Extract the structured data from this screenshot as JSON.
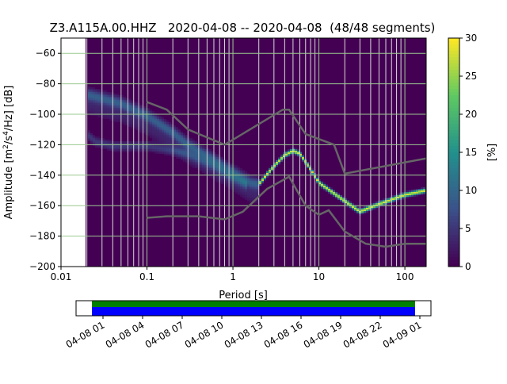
{
  "chart_data": {
    "type": "heatmap",
    "title": "Z3.A115A.00.HHZ   2020-04-08 -- 2020-04-08  (48/48 segments)",
    "xlabel": "Period [s]",
    "ylabel": "Amplitude [m²/s⁴/Hz] [dB]",
    "xscale": "log",
    "xlim": [
      0.01,
      177
    ],
    "ylim": [
      -200,
      -50
    ],
    "xticks": [
      {
        "v": 0.01,
        "label": "0.01"
      },
      {
        "v": 0.1,
        "label": "0.1"
      },
      {
        "v": 1,
        "label": "1"
      },
      {
        "v": 10,
        "label": "10"
      },
      {
        "v": 100,
        "label": "100"
      }
    ],
    "yticks": [
      {
        "v": -60,
        "label": "−60"
      },
      {
        "v": -80,
        "label": "−80"
      },
      {
        "v": -100,
        "label": "−100"
      },
      {
        "v": -120,
        "label": "−120"
      },
      {
        "v": -140,
        "label": "−140"
      },
      {
        "v": -160,
        "label": "−160"
      },
      {
        "v": -180,
        "label": "−180"
      },
      {
        "v": -200,
        "label": "−200"
      }
    ],
    "data_period_range": [
      0.0193,
      177
    ],
    "grid": true,
    "mode_curve": [
      [
        0.02,
        -87
      ],
      [
        0.05,
        -93
      ],
      [
        0.1,
        -101
      ],
      [
        0.2,
        -112
      ],
      [
        0.3,
        -120
      ],
      [
        0.6,
        -130
      ],
      [
        1,
        -138
      ],
      [
        1.6,
        -145
      ],
      [
        2,
        -146
      ],
      [
        3,
        -134
      ],
      [
        4,
        -127
      ],
      [
        5,
        -124
      ],
      [
        6,
        -126
      ],
      [
        8,
        -136
      ],
      [
        10,
        -145
      ],
      [
        15,
        -152
      ],
      [
        20,
        -157
      ],
      [
        30,
        -164
      ],
      [
        50,
        -159
      ],
      [
        100,
        -153
      ],
      [
        177,
        -150
      ]
    ],
    "secondary_curve": [
      [
        0.02,
        -113
      ],
      [
        0.025,
        -118
      ],
      [
        0.04,
        -121
      ],
      [
        0.1,
        -121
      ],
      [
        0.3,
        -126
      ],
      [
        0.6,
        -134
      ],
      [
        1,
        -142
      ],
      [
        1.5,
        -147
      ]
    ],
    "noise_models": [
      {
        "name": "NHNM",
        "color": "#666666",
        "points": [
          [
            0.1,
            -92
          ],
          [
            0.17,
            -97
          ],
          [
            0.3,
            -110
          ],
          [
            0.8,
            -120
          ],
          [
            3.8,
            -97
          ],
          [
            4.5,
            -97
          ],
          [
            7,
            -113
          ],
          [
            15,
            -120
          ],
          [
            20,
            -139
          ],
          [
            177,
            -129
          ]
        ]
      },
      {
        "name": "NLNM",
        "color": "#666666",
        "points": [
          [
            0.1,
            -168
          ],
          [
            0.17,
            -167
          ],
          [
            0.4,
            -167
          ],
          [
            0.8,
            -169
          ],
          [
            1.3,
            -164
          ],
          [
            2.5,
            -149
          ],
          [
            4.5,
            -141
          ],
          [
            7,
            -160
          ],
          [
            10,
            -166
          ],
          [
            13,
            -163
          ],
          [
            20,
            -177
          ],
          [
            35,
            -185
          ],
          [
            60,
            -187
          ],
          [
            100,
            -185
          ],
          [
            177,
            -185
          ]
        ]
      }
    ],
    "colorbar": {
      "label": "[%]",
      "min": 0,
      "max": 30,
      "ticks": [
        {
          "v": 0,
          "label": "0"
        },
        {
          "v": 5,
          "label": "5"
        },
        {
          "v": 10,
          "label": "10"
        },
        {
          "v": 15,
          "label": "15"
        },
        {
          "v": 20,
          "label": "20"
        },
        {
          "v": 25,
          "label": "25"
        },
        {
          "v": 30,
          "label": "30"
        }
      ],
      "colormap": "viridis"
    },
    "time_coverage": {
      "ticks": [
        "04-08 01",
        "04-08 04",
        "04-08 07",
        "04-08 10",
        "04-08 13",
        "04-08 16",
        "04-08 19",
        "04-08 22",
        "04-09 01"
      ],
      "bars": [
        {
          "name": "data",
          "color": "#008000"
        },
        {
          "name": "used",
          "color": "#0000ff"
        }
      ],
      "start_hour": 0.0,
      "end_hour": 24.0,
      "axis_start_hour": 23.32,
      "axis_end_hour": 49.3
    }
  }
}
